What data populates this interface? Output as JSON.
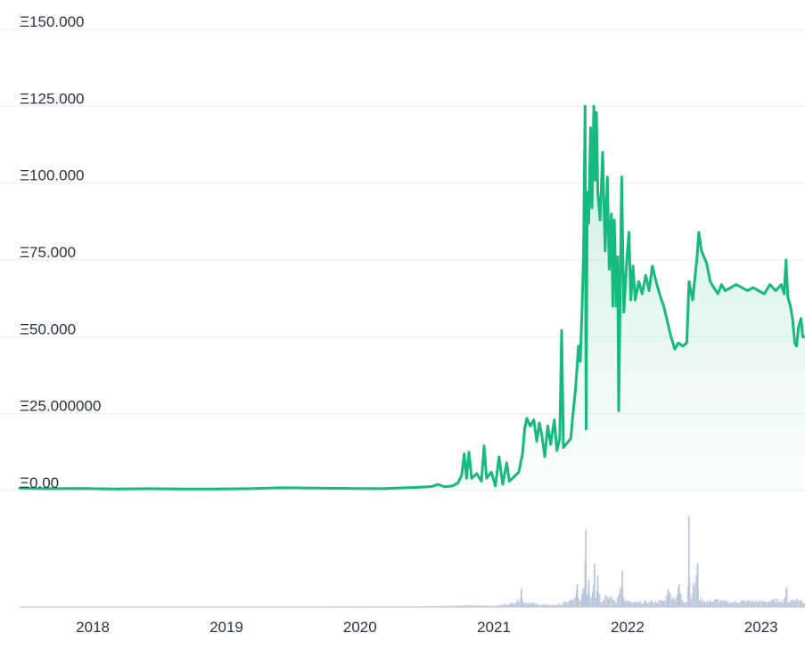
{
  "chart_data": {
    "type": "line",
    "x_type": "date",
    "y_ticks": [
      "Ξ150.000",
      "Ξ125.000",
      "Ξ100.000",
      "Ξ75.000",
      "Ξ50.000",
      "Ξ25.000000",
      "Ξ0.00"
    ],
    "y_tick_values": [
      150,
      125,
      100,
      75,
      50,
      25,
      0
    ],
    "ylim": [
      0,
      150
    ],
    "x_ticks": [
      "2018",
      "2019",
      "2020",
      "2021",
      "2022",
      "2023"
    ],
    "x_tick_dates": [
      "2018-01-01",
      "2019-01-01",
      "2020-01-01",
      "2021-01-01",
      "2022-01-01",
      "2023-01-01"
    ],
    "xlim": [
      "2017-06-15",
      "2023-05-01"
    ],
    "grid": true,
    "legend": "none",
    "series": [
      {
        "color": "#16b97e",
        "points": [
          [
            "2017-06-15",
            0.8
          ],
          [
            "2017-09-01",
            0.6
          ],
          [
            "2017-12-01",
            0.7
          ],
          [
            "2018-03-01",
            0.5
          ],
          [
            "2018-06-01",
            0.6
          ],
          [
            "2018-09-01",
            0.5
          ],
          [
            "2018-12-01",
            0.5
          ],
          [
            "2019-03-01",
            0.6
          ],
          [
            "2019-06-01",
            0.9
          ],
          [
            "2019-09-01",
            0.8
          ],
          [
            "2019-12-01",
            0.7
          ],
          [
            "2020-03-01",
            0.6
          ],
          [
            "2020-06-01",
            1.0
          ],
          [
            "2020-07-15",
            1.3
          ],
          [
            "2020-08-01",
            2.0
          ],
          [
            "2020-08-20",
            1.2
          ],
          [
            "2020-09-10",
            1.5
          ],
          [
            "2020-09-25",
            2.5
          ],
          [
            "2020-10-05",
            5.0
          ],
          [
            "2020-10-12",
            12.0
          ],
          [
            "2020-10-18",
            4.0
          ],
          [
            "2020-10-25",
            12.5
          ],
          [
            "2020-11-01",
            4.0
          ],
          [
            "2020-11-15",
            5.5
          ],
          [
            "2020-11-28",
            3.0
          ],
          [
            "2020-12-05",
            14.5
          ],
          [
            "2020-12-12",
            4.0
          ],
          [
            "2020-12-25",
            6.0
          ],
          [
            "2021-01-05",
            1.5
          ],
          [
            "2021-01-15",
            11.0
          ],
          [
            "2021-01-25",
            2.0
          ],
          [
            "2021-02-05",
            9.0
          ],
          [
            "2021-02-12",
            3.0
          ],
          [
            "2021-02-25",
            4.5
          ],
          [
            "2021-03-10",
            6.0
          ],
          [
            "2021-03-20",
            12.0
          ],
          [
            "2021-03-26",
            20.0
          ],
          [
            "2021-04-01",
            23.5
          ],
          [
            "2021-04-10",
            21.0
          ],
          [
            "2021-04-20",
            23.0
          ],
          [
            "2021-04-28",
            16.0
          ],
          [
            "2021-05-05",
            22.0
          ],
          [
            "2021-05-12",
            18.0
          ],
          [
            "2021-05-20",
            11.0
          ],
          [
            "2021-05-28",
            21.0
          ],
          [
            "2021-06-05",
            15.0
          ],
          [
            "2021-06-15",
            23.0
          ],
          [
            "2021-06-22",
            13.0
          ],
          [
            "2021-06-30",
            17.0
          ],
          [
            "2021-07-05",
            52.0
          ],
          [
            "2021-07-10",
            14.0
          ],
          [
            "2021-07-20",
            15.5
          ],
          [
            "2021-07-30",
            17.0
          ],
          [
            "2021-08-05",
            25.0
          ],
          [
            "2021-08-12",
            33.0
          ],
          [
            "2021-08-20",
            47.0
          ],
          [
            "2021-08-25",
            42.0
          ],
          [
            "2021-08-30",
            60.0
          ],
          [
            "2021-09-03",
            78.0
          ],
          [
            "2021-09-07",
            125.0
          ],
          [
            "2021-09-10",
            20.0
          ],
          [
            "2021-09-13",
            97.0
          ],
          [
            "2021-09-17",
            87.0
          ],
          [
            "2021-09-22",
            118.0
          ],
          [
            "2021-09-26",
            92.0
          ],
          [
            "2021-10-01",
            125.0
          ],
          [
            "2021-10-05",
            101.0
          ],
          [
            "2021-10-08",
            123.0
          ],
          [
            "2021-10-12",
            97.0
          ],
          [
            "2021-10-18",
            88.0
          ],
          [
            "2021-10-25",
            110.0
          ],
          [
            "2021-11-01",
            78.0
          ],
          [
            "2021-11-07",
            102.0
          ],
          [
            "2021-11-12",
            72.0
          ],
          [
            "2021-11-18",
            90.0
          ],
          [
            "2021-11-22",
            60.0
          ],
          [
            "2021-11-26",
            88.0
          ],
          [
            "2021-12-01",
            60.0
          ],
          [
            "2021-12-05",
            76.0
          ],
          [
            "2021-12-08",
            26.0
          ],
          [
            "2021-12-12",
            64.0
          ],
          [
            "2021-12-16",
            102.0
          ],
          [
            "2021-12-22",
            58.0
          ],
          [
            "2021-12-30",
            75.0
          ],
          [
            "2022-01-05",
            84.0
          ],
          [
            "2022-01-10",
            62.0
          ],
          [
            "2022-01-16",
            73.0
          ],
          [
            "2022-01-22",
            62.0
          ],
          [
            "2022-02-01",
            68.0
          ],
          [
            "2022-02-10",
            64.0
          ],
          [
            "2022-02-20",
            70.0
          ],
          [
            "2022-03-01",
            65.0
          ],
          [
            "2022-03-10",
            73.0
          ],
          [
            "2022-03-20",
            68.0
          ],
          [
            "2022-04-01",
            63.0
          ],
          [
            "2022-04-10",
            60.0
          ],
          [
            "2022-04-20",
            55.0
          ],
          [
            "2022-04-30",
            50.0
          ],
          [
            "2022-05-10",
            46.0
          ],
          [
            "2022-05-20",
            48.0
          ],
          [
            "2022-06-01",
            47.0
          ],
          [
            "2022-06-12",
            48.0
          ],
          [
            "2022-06-18",
            68.0
          ],
          [
            "2022-06-28",
            62.0
          ],
          [
            "2022-07-10",
            76.0
          ],
          [
            "2022-07-15",
            84.0
          ],
          [
            "2022-07-22",
            78.0
          ],
          [
            "2022-08-05",
            74.0
          ],
          [
            "2022-08-15",
            68.0
          ],
          [
            "2022-08-25",
            66.0
          ],
          [
            "2022-09-05",
            64.0
          ],
          [
            "2022-09-15",
            67.0
          ],
          [
            "2022-09-25",
            65.0
          ],
          [
            "2022-10-10",
            66.0
          ],
          [
            "2022-10-25",
            67.0
          ],
          [
            "2022-11-10",
            66.0
          ],
          [
            "2022-11-25",
            65.0
          ],
          [
            "2022-12-10",
            66.0
          ],
          [
            "2022-12-25",
            65.0
          ],
          [
            "2023-01-10",
            64.0
          ],
          [
            "2023-01-25",
            67.0
          ],
          [
            "2023-02-10",
            65.0
          ],
          [
            "2023-02-25",
            67.0
          ],
          [
            "2023-03-05",
            64.0
          ],
          [
            "2023-03-10",
            75.0
          ],
          [
            "2023-03-15",
            63.0
          ],
          [
            "2023-03-22",
            60.0
          ],
          [
            "2023-03-28",
            56.0
          ],
          [
            "2023-04-03",
            48.0
          ],
          [
            "2023-04-08",
            47.0
          ],
          [
            "2023-04-13",
            53.0
          ],
          [
            "2023-04-20",
            56.0
          ],
          [
            "2023-04-25",
            50.0
          ],
          [
            "2023-05-01",
            50.0
          ]
        ]
      }
    ],
    "volume": {
      "color": "#b6c3d9",
      "scale": "relative, 0-100",
      "points": [
        [
          "2017-06-15",
          0.5
        ],
        [
          "2018-06-01",
          0.5
        ],
        [
          "2019-06-01",
          0.5
        ],
        [
          "2020-06-01",
          1.0
        ],
        [
          "2020-10-15",
          2.5
        ],
        [
          "2021-01-01",
          2.0
        ],
        [
          "2021-02-15",
          5.0
        ],
        [
          "2021-03-10",
          10.0
        ],
        [
          "2021-03-15",
          20.0
        ],
        [
          "2021-03-20",
          8.0
        ],
        [
          "2021-04-10",
          6.0
        ],
        [
          "2021-05-01",
          4.0
        ],
        [
          "2021-06-01",
          3.0
        ],
        [
          "2021-07-01",
          4.0
        ],
        [
          "2021-08-10",
          12.0
        ],
        [
          "2021-08-15",
          25.0
        ],
        [
          "2021-08-20",
          8.0
        ],
        [
          "2021-09-01",
          20.0
        ],
        [
          "2021-09-07",
          85.0
        ],
        [
          "2021-09-10",
          15.0
        ],
        [
          "2021-09-15",
          30.0
        ],
        [
          "2021-09-22",
          12.0
        ],
        [
          "2021-10-01",
          48.0
        ],
        [
          "2021-10-05",
          10.0
        ],
        [
          "2021-10-10",
          35.0
        ],
        [
          "2021-10-20",
          7.0
        ],
        [
          "2021-11-01",
          18.0
        ],
        [
          "2021-11-15",
          12.0
        ],
        [
          "2021-12-01",
          8.0
        ],
        [
          "2021-12-16",
          40.0
        ],
        [
          "2021-12-20",
          10.0
        ],
        [
          "2022-01-15",
          6.0
        ],
        [
          "2022-02-10",
          7.0
        ],
        [
          "2022-03-10",
          8.0
        ],
        [
          "2022-04-10",
          9.0
        ],
        [
          "2022-04-20",
          20.0
        ],
        [
          "2022-05-10",
          12.0
        ],
        [
          "2022-05-20",
          25.0
        ],
        [
          "2022-06-01",
          8.0
        ],
        [
          "2022-06-12",
          10.0
        ],
        [
          "2022-06-16",
          100.0
        ],
        [
          "2022-06-20",
          15.0
        ],
        [
          "2022-07-10",
          48.0
        ],
        [
          "2022-07-15",
          12.0
        ],
        [
          "2022-08-05",
          8.0
        ],
        [
          "2022-09-01",
          10.0
        ],
        [
          "2022-10-01",
          7.0
        ],
        [
          "2022-11-01",
          8.0
        ],
        [
          "2022-12-01",
          9.0
        ],
        [
          "2023-01-10",
          8.0
        ],
        [
          "2023-02-10",
          10.0
        ],
        [
          "2023-03-01",
          9.0
        ],
        [
          "2023-03-10",
          22.0
        ],
        [
          "2023-03-15",
          8.0
        ],
        [
          "2023-04-05",
          12.0
        ],
        [
          "2023-05-01",
          6.0
        ]
      ]
    }
  }
}
